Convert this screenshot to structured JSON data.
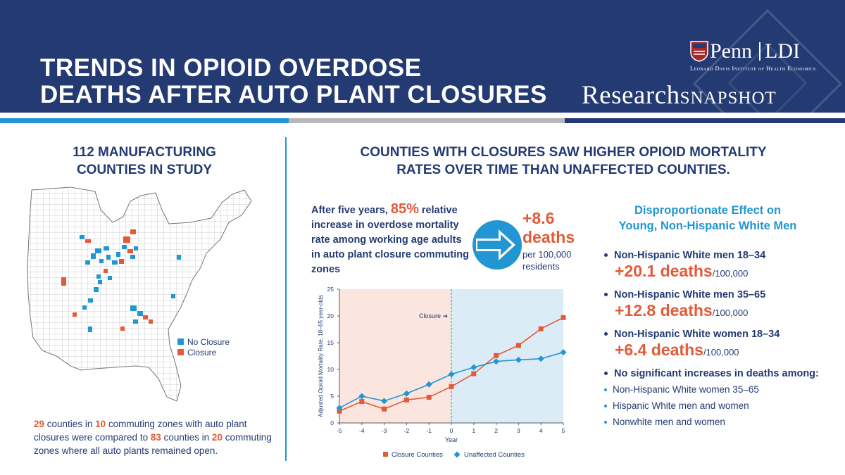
{
  "header": {
    "title_line1": "TRENDS IN OPIOID OVERDOSE",
    "title_line2": "DEATHS AFTER AUTO PLANT CLOSURES",
    "logo_penn": "Penn",
    "logo_ldi": "LDI",
    "logo_sub": "Leonard Davis Institute of Health Economics",
    "snapshot_a": "Research",
    "snapshot_b": "SNAPSHOT"
  },
  "colors": {
    "navy": "#233a72",
    "blue": "#2196d3",
    "orange": "#e45a38",
    "closure_panel": "#fbe6df",
    "after_panel": "#dcecf7",
    "stripe_gray": "#b7b8b9"
  },
  "left": {
    "title_line1": "112 MANUFACTURING",
    "title_line2": "COUNTIES IN STUDY",
    "legend_no_closure": "No Closure",
    "legend_closure": "Closure",
    "note": {
      "n1": "29",
      "t1": " counties in ",
      "n2": "10",
      "t2": " commuting zones with auto plant closures were compared to ",
      "n3": "83",
      "t3": " counties in ",
      "n4": "20",
      "t4": " commuting zones where all auto plants remained open."
    }
  },
  "right": {
    "title_line1": "COUNTIES WITH CLOSURES SAW HIGHER OPIOID MORTALITY",
    "title_line2": "RATES OVER TIME THAN UNAFFECTED COUNTIES.",
    "stat_pre": "After five years, ",
    "stat_big": "85%",
    "stat_post": " relative increase in overdose mortality rate among working age adults in auto plant closure commuting zones",
    "deaths_num": "+8.6",
    "deaths_lbl": "deaths",
    "deaths_sub": "per 100,000 residents",
    "arrow_icon": "right-arrow-icon"
  },
  "dispro": {
    "title_line1": "Disproportionate Effect on",
    "title_line2": "Young, Non-Hispanic White Men",
    "items": [
      {
        "label": "Non-Hispanic White men 18–34",
        "num": "+20.1 deaths",
        "per": "/100,000"
      },
      {
        "label": "Non-Hispanic White men 35–65",
        "num": "+12.8 deaths",
        "per": "/100,000"
      },
      {
        "label": "Non-Hispanic White women 18–34",
        "num": "+6.4 deaths",
        "per": "/100,000"
      }
    ],
    "none_label": "No significant increases in deaths among:",
    "none_items": [
      "Non-Hispanic White women 35–65",
      "Hispanic White men and women",
      "Nonwhite men and women"
    ]
  },
  "chart_data": {
    "type": "line",
    "title": "",
    "xlabel": "Year",
    "ylabel": "Adjusted Opioid Mortality Rate, 18–65 year-olds",
    "x": [
      -5,
      -4,
      -3,
      -2,
      -1,
      0,
      1,
      2,
      3,
      4,
      5
    ],
    "xlim": [
      -5,
      5
    ],
    "ylim": [
      0,
      25
    ],
    "yticks": [
      0,
      5,
      10,
      15,
      20,
      25
    ],
    "annotation": "Closure ➔",
    "series": [
      {
        "name": "Closure Counties",
        "marker": "square",
        "color": "#e45a38",
        "values": [
          2.2,
          4.0,
          2.6,
          4.3,
          4.8,
          6.8,
          9.2,
          12.6,
          14.5,
          17.6,
          19.7
        ]
      },
      {
        "name": "Unaffected Counties",
        "marker": "diamond",
        "color": "#2196d3",
        "values": [
          2.8,
          5.0,
          4.1,
          5.5,
          7.2,
          9.1,
          10.4,
          11.5,
          11.8,
          12.0,
          13.2
        ]
      }
    ],
    "legend": "bottom"
  }
}
